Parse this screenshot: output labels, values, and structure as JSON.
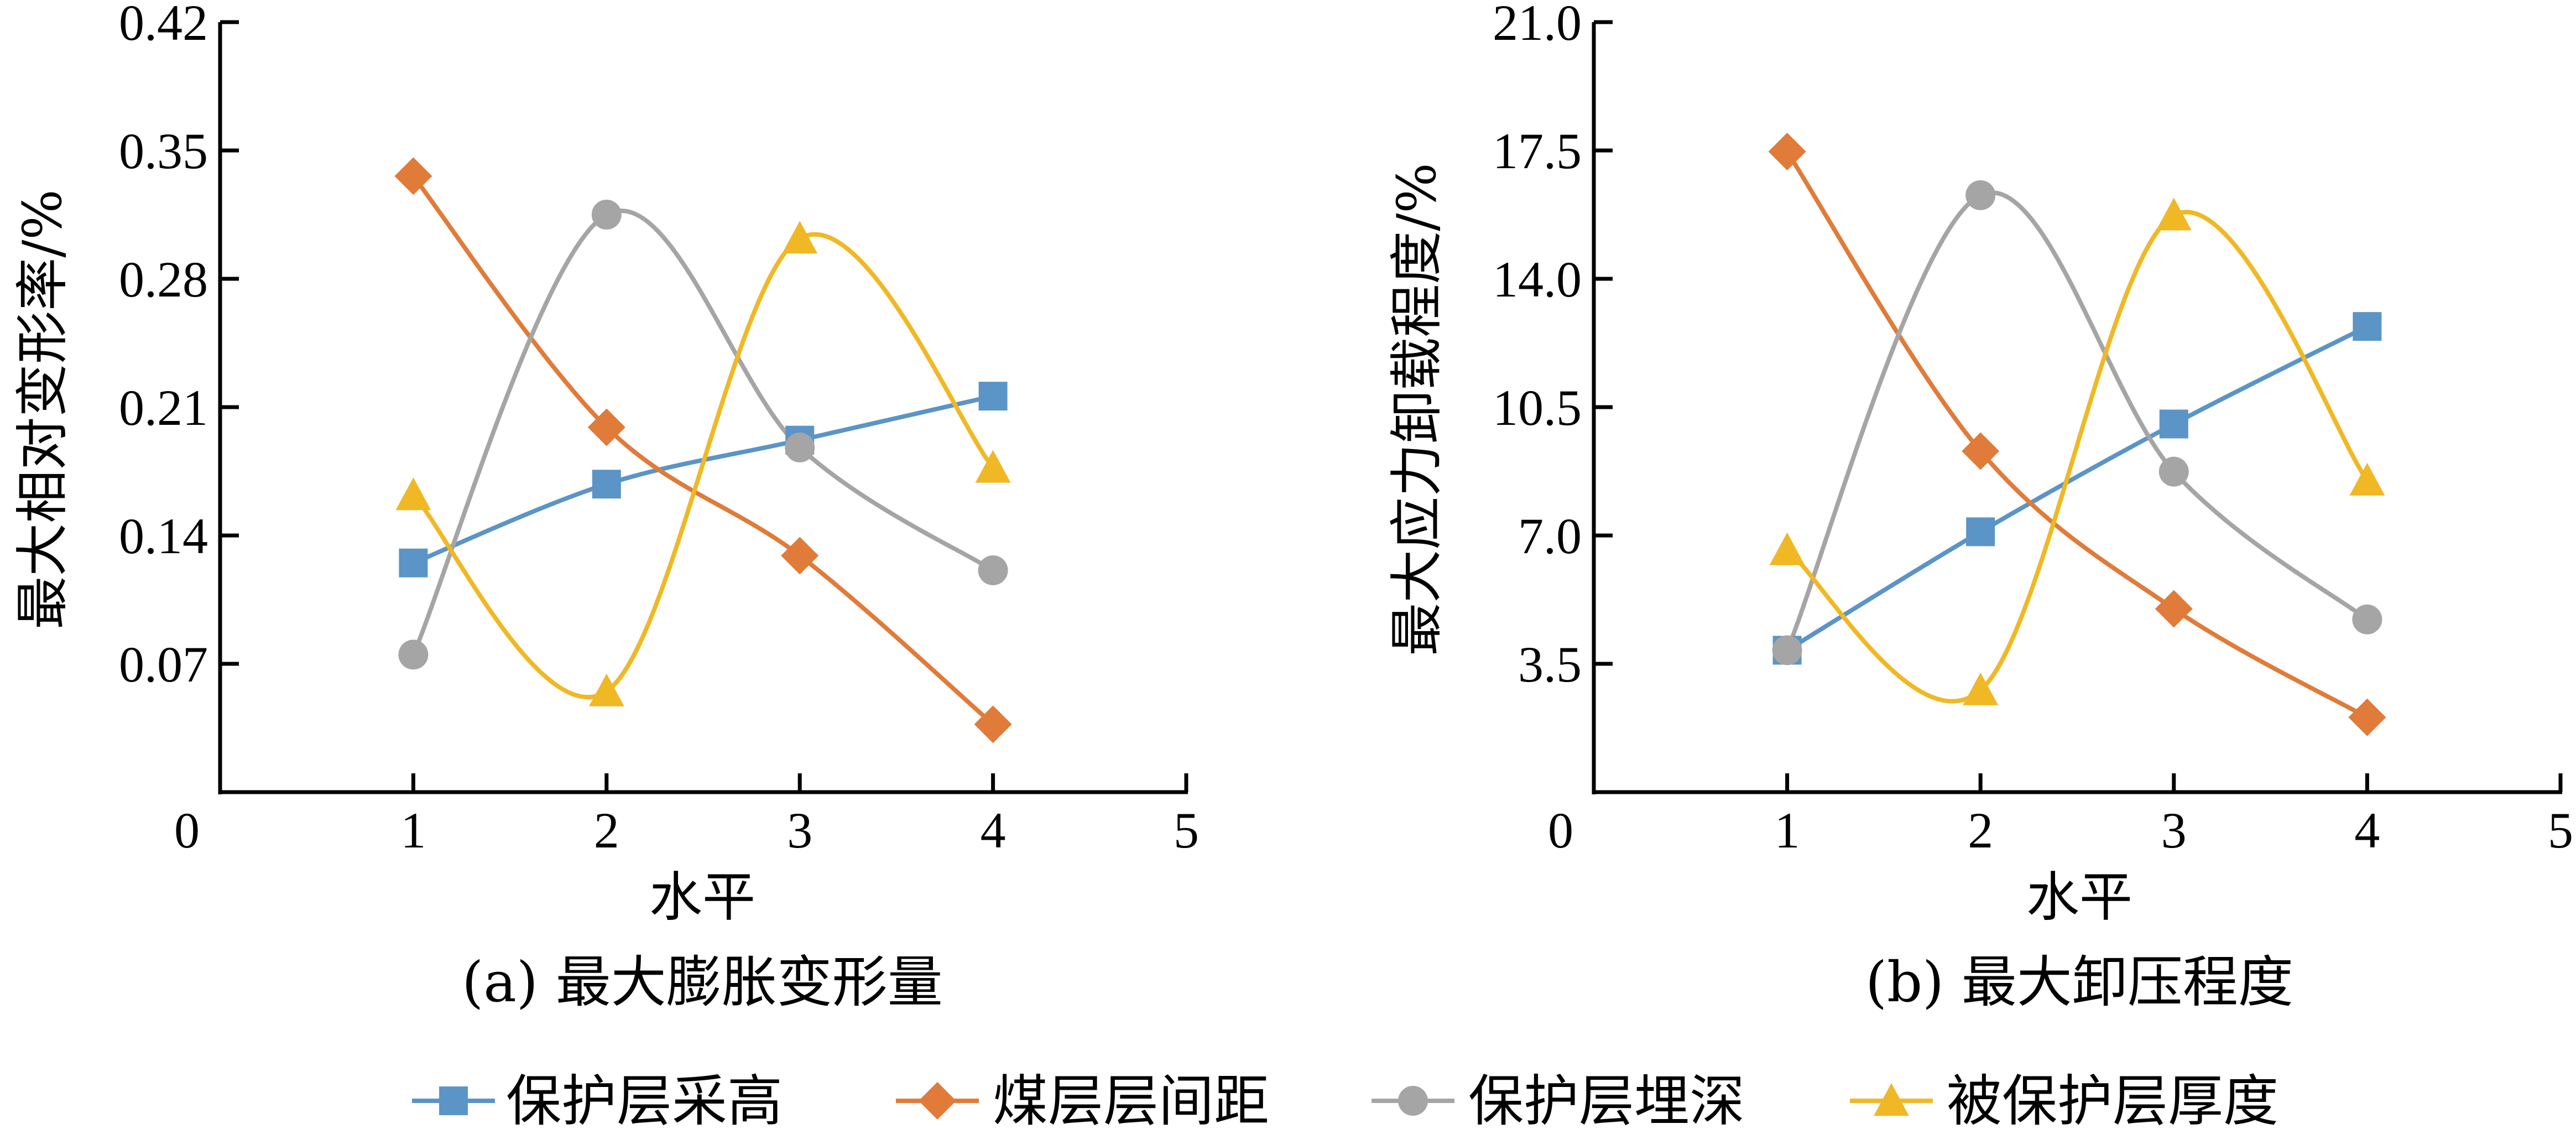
{
  "chart_data": [
    {
      "type": "line",
      "title": "",
      "caption": "(a) 最大膨胀变形量",
      "xlabel": "水平",
      "ylabel": "最大相对变形率/%",
      "xlim": [
        0,
        5
      ],
      "ylim": [
        0,
        0.42
      ],
      "xticks": [
        "0",
        "1",
        "2",
        "3",
        "4",
        "5"
      ],
      "yticks": [
        "0.07",
        "0.14",
        "0.21",
        "0.28",
        "0.35",
        "0.42"
      ],
      "ytick_values": [
        0.07,
        0.14,
        0.21,
        0.28,
        0.35,
        0.42
      ],
      "x": [
        1,
        2,
        3,
        4
      ],
      "grid": false,
      "smooth": true,
      "series": [
        {
          "name": "保护层采高",
          "marker": "square",
          "color": "#5B94C7",
          "values": [
            0.125,
            0.168,
            0.192,
            0.216
          ]
        },
        {
          "name": "煤层层间距",
          "marker": "diamond",
          "color": "#E07B39",
          "values": [
            0.336,
            0.199,
            0.129,
            0.037
          ]
        },
        {
          "name": "保护层埋深",
          "marker": "circle",
          "color": "#A5A5A5",
          "values": [
            0.075,
            0.315,
            0.188,
            0.121
          ]
        },
        {
          "name": "被保护层厚度",
          "marker": "triangle",
          "color": "#F0B825",
          "values": [
            0.162,
            0.055,
            0.302,
            0.177
          ]
        }
      ]
    },
    {
      "type": "line",
      "title": "",
      "caption": "(b) 最大卸压程度",
      "xlabel": "水平",
      "ylabel": "最大应力卸载程度/%",
      "xlim": [
        0,
        5
      ],
      "ylim": [
        0,
        21.0
      ],
      "xticks": [
        "0",
        "1",
        "2",
        "3",
        "4",
        "5"
      ],
      "yticks": [
        "3.5",
        "7.0",
        "10.5",
        "14.0",
        "17.5",
        "21.0"
      ],
      "ytick_values": [
        3.5,
        7.0,
        10.5,
        14.0,
        17.5,
        21.0
      ],
      "x": [
        1,
        2,
        3,
        4
      ],
      "grid": false,
      "smooth": true,
      "series": [
        {
          "name": "保护层采高",
          "marker": "square",
          "color": "#5B94C7",
          "values": [
            3.87,
            7.1,
            10.04,
            12.7
          ]
        },
        {
          "name": "煤层层间距",
          "marker": "diamond",
          "color": "#E07B39",
          "values": [
            17.47,
            9.3,
            5.0,
            2.04
          ]
        },
        {
          "name": "保护层埋深",
          "marker": "circle",
          "color": "#A5A5A5",
          "values": [
            3.87,
            16.28,
            8.74,
            4.71
          ]
        },
        {
          "name": "被保护层厚度",
          "marker": "triangle",
          "color": "#F0B825",
          "values": [
            6.6,
            2.78,
            15.73,
            8.5
          ]
        }
      ]
    }
  ],
  "legend": {
    "placement": "bottom",
    "items": [
      {
        "label": "保护层采高",
        "marker": "square",
        "color": "#5B94C7"
      },
      {
        "label": "煤层层间距",
        "marker": "diamond",
        "color": "#E07B39"
      },
      {
        "label": "保护层埋深",
        "marker": "circle",
        "color": "#A5A5A5"
      },
      {
        "label": "被保护层厚度",
        "marker": "triangle",
        "color": "#F0B825"
      }
    ]
  }
}
